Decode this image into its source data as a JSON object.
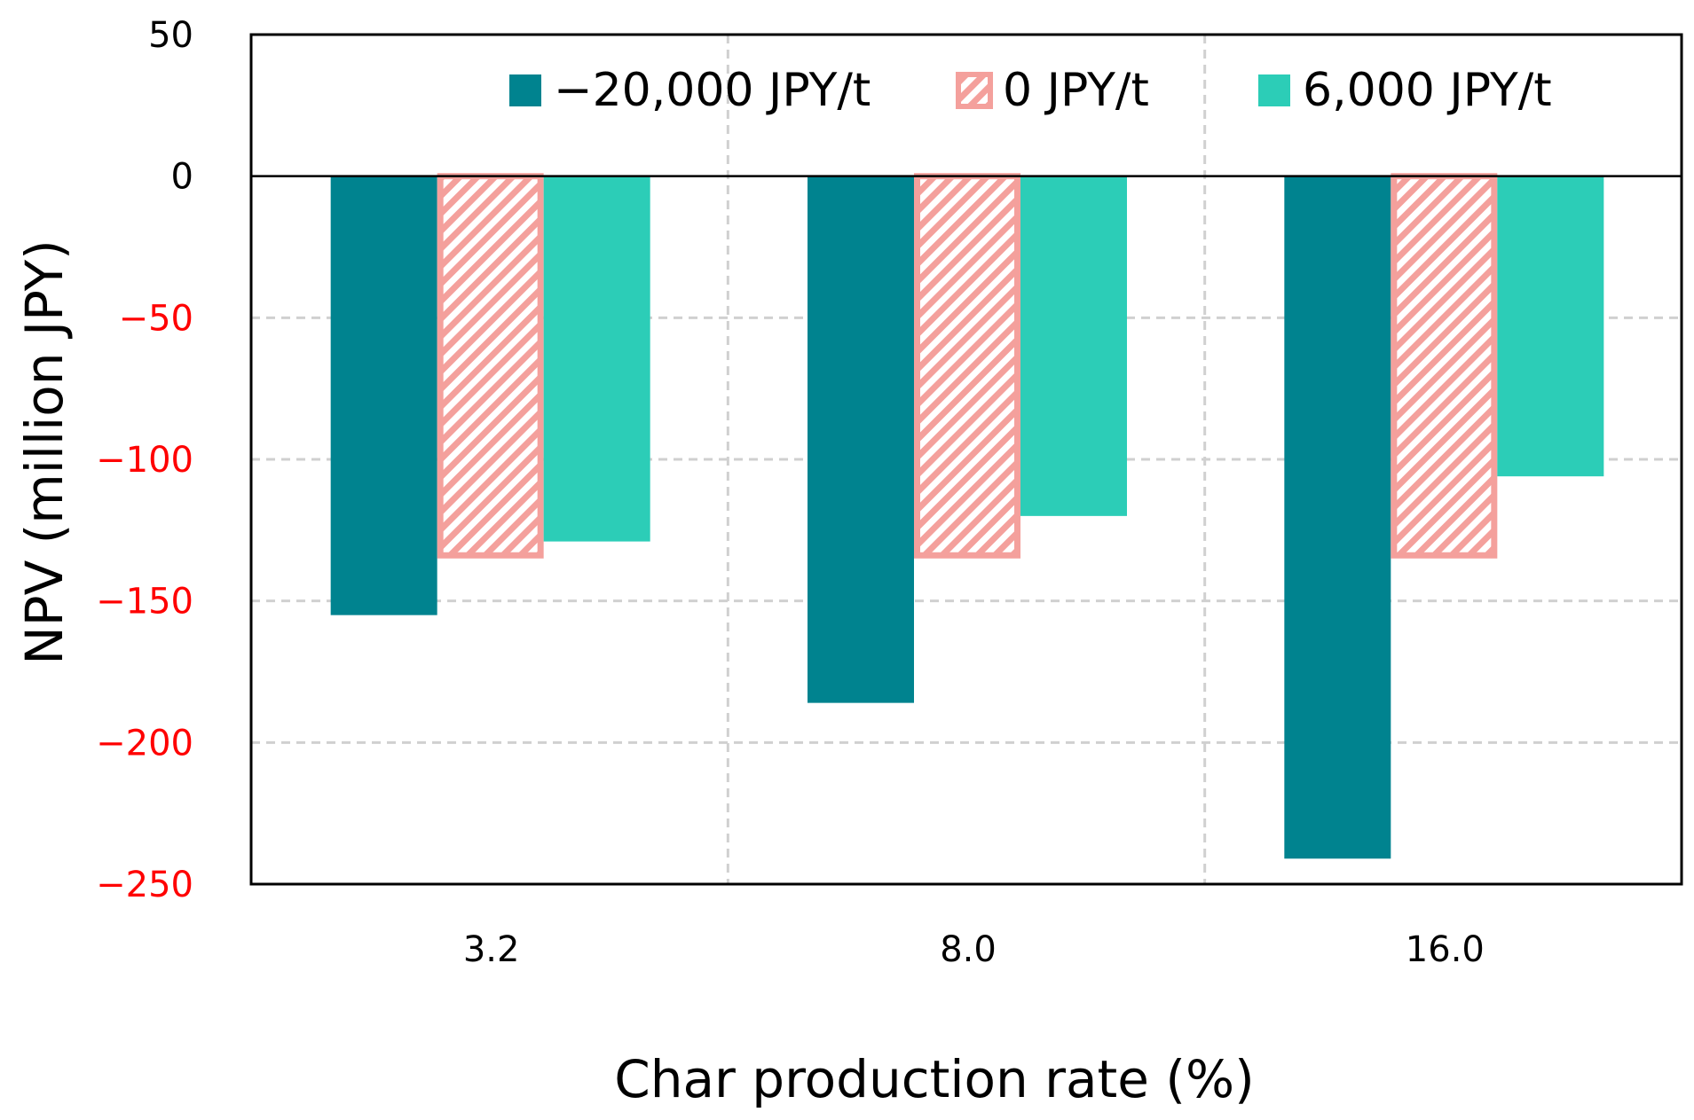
{
  "chart_data": {
    "type": "bar",
    "title": "",
    "xlabel": "Char production rate (%)",
    "ylabel": "NPV (million JPY)",
    "categories": [
      "3.2",
      "8.0",
      "16.0"
    ],
    "ylim": [
      -250,
      50
    ],
    "yticks": [
      50,
      0,
      -50,
      -100,
      -150,
      -200,
      -250
    ],
    "ytick_labels": [
      "50",
      "0",
      "−50",
      "−100",
      "−150",
      "−200",
      "−250"
    ],
    "negative_tick_color": "#ff0000",
    "positive_tick_color": "#000000",
    "grid": true,
    "legend_position": "top",
    "series": [
      {
        "name": "−20,000 JPY/t",
        "values": [
          -155,
          -186,
          -241
        ],
        "color": "#00838f",
        "pattern": "solid"
      },
      {
        "name": "0 JPY/t",
        "values": [
          -135,
          -135,
          -135
        ],
        "color": "#f4a09c",
        "pattern": "hatched"
      },
      {
        "name": "6,000 JPY/t",
        "values": [
          -129,
          -120,
          -106
        ],
        "color": "#2ccdb7",
        "pattern": "solid"
      }
    ]
  }
}
